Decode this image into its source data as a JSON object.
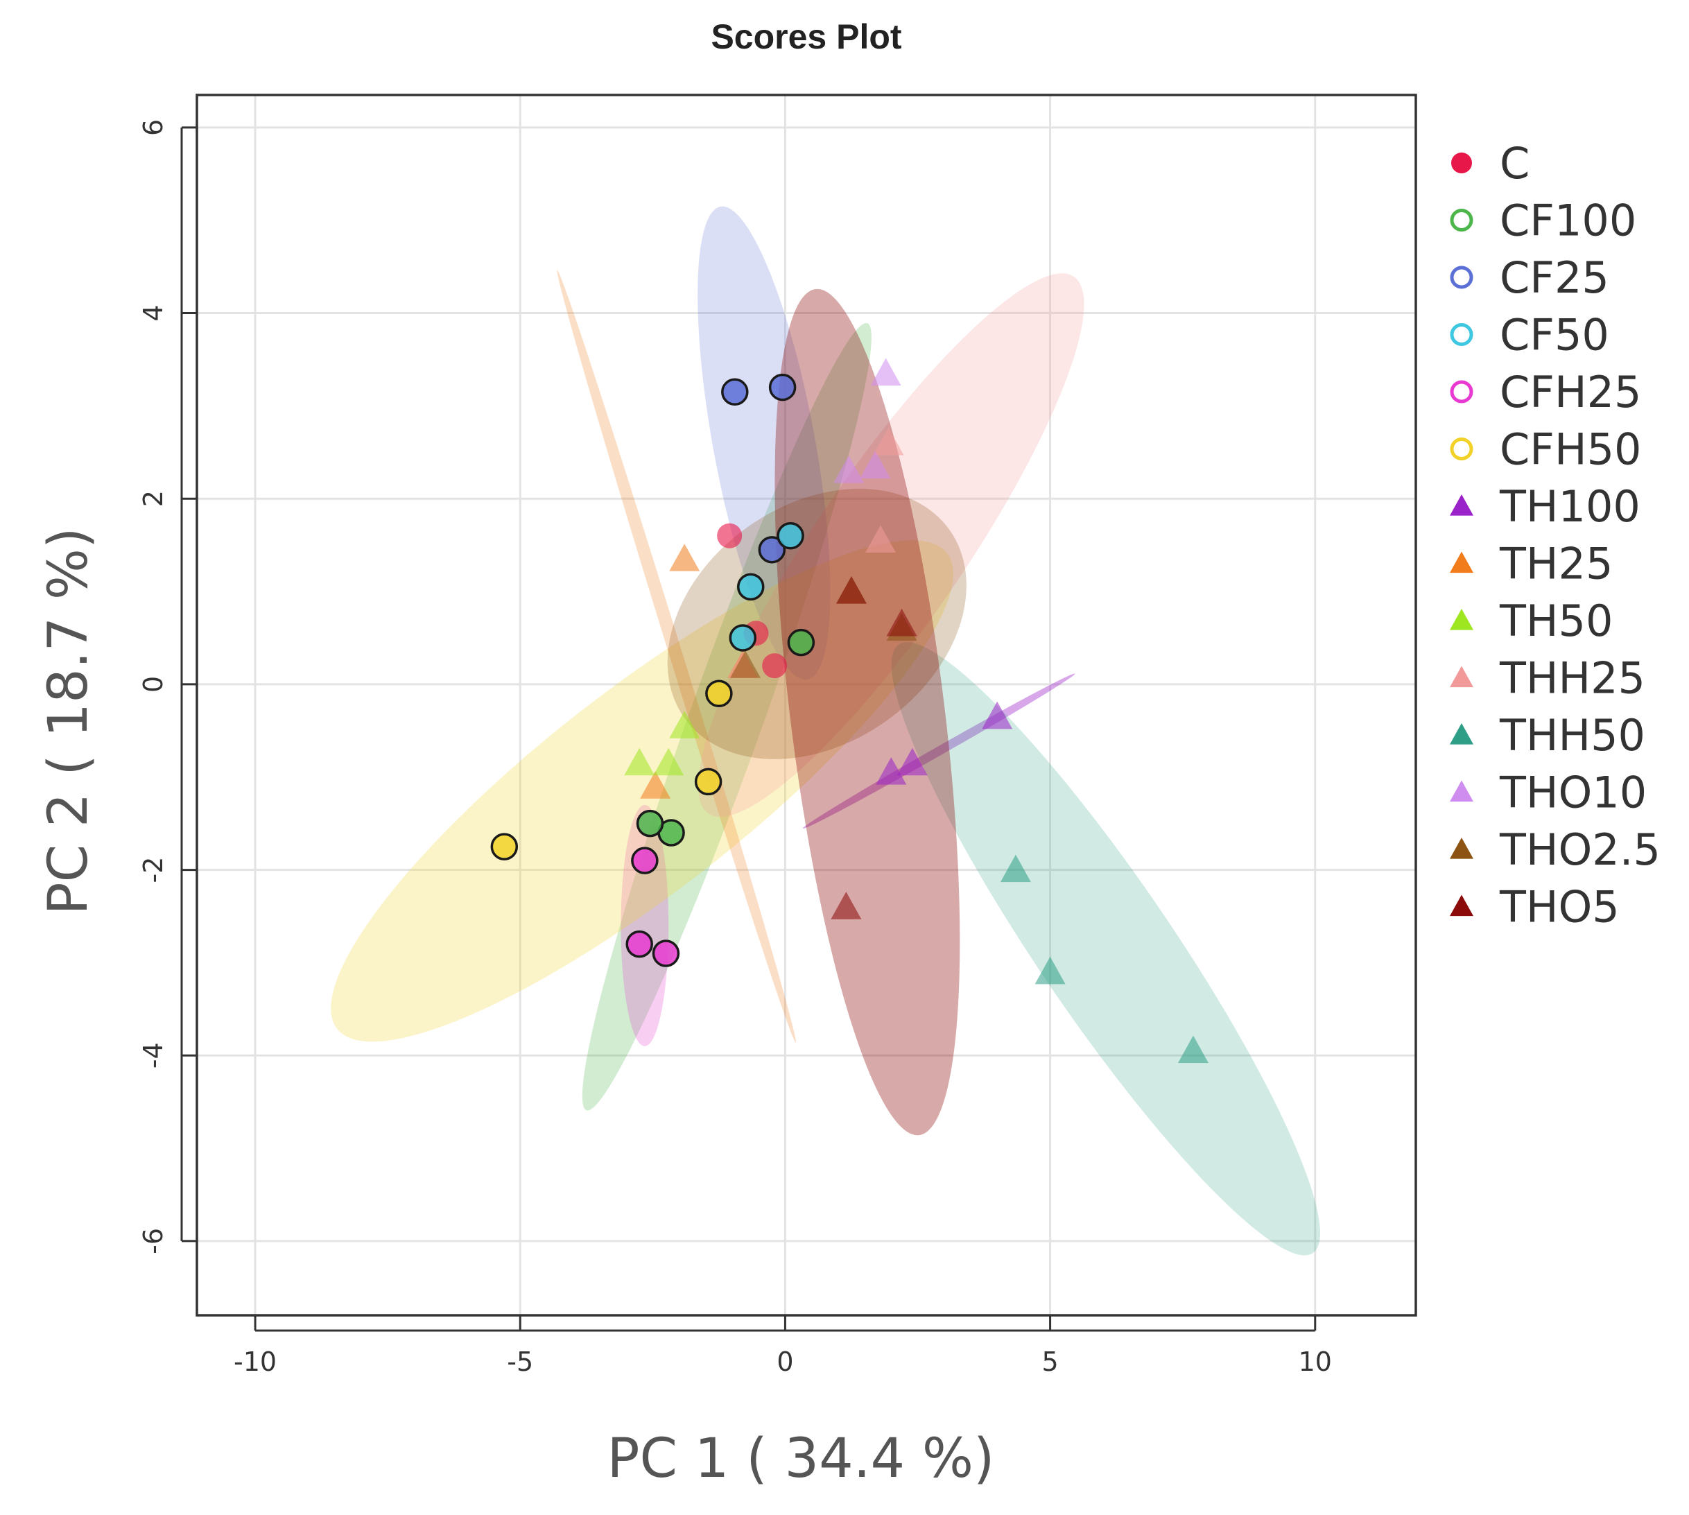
{
  "chart_data": {
    "type": "scatter",
    "title": "Scores Plot",
    "xlabel": "PC 1 ( 34.4 %)",
    "ylabel": "PC 2 ( 18.7 %)",
    "xlim": [
      -11.1,
      11.9
    ],
    "ylim": [
      -6.8,
      6.35
    ],
    "xticks": [
      -10,
      -5,
      0,
      5,
      10
    ],
    "xtick_labels": [
      "-10",
      "-5",
      "0",
      "5",
      "10"
    ],
    "yticks": [
      -6,
      -4,
      -2,
      0,
      2,
      4,
      6
    ],
    "ytick_labels": [
      "-6",
      "-4",
      "-2",
      "0",
      "2",
      "4",
      "6"
    ],
    "grid": true,
    "legend_position": "right",
    "series": [
      {
        "name": "C",
        "color": "#e8174a",
        "marker": "circle",
        "filled": true,
        "points": [
          [
            -1.05,
            1.6
          ],
          [
            -0.55,
            0.55
          ],
          [
            -0.2,
            0.2
          ]
        ],
        "ellipse": null
      },
      {
        "name": "CF100",
        "color": "#4cb54c",
        "marker": "circle",
        "filled": false,
        "points": [
          [
            0.3,
            0.45
          ],
          [
            -2.15,
            -1.6
          ],
          [
            -2.55,
            -1.5
          ]
        ],
        "ellipse": {
          "cx": -1.1,
          "cy": -0.35,
          "rx": 5.0,
          "ry": 0.55,
          "angle_deg": 58,
          "opacity": 0.25
        }
      },
      {
        "name": "CF25",
        "color": "#5b6fd6",
        "marker": "circle",
        "filled": false,
        "points": [
          [
            -0.95,
            3.15
          ],
          [
            -0.05,
            3.2
          ],
          [
            -0.25,
            1.45
          ]
        ],
        "ellipse": {
          "cx": -0.4,
          "cy": 2.6,
          "rx": 0.95,
          "ry": 2.6,
          "angle_deg": 6,
          "opacity": 0.22
        }
      },
      {
        "name": "CF50",
        "color": "#3fc6e0",
        "marker": "circle",
        "filled": false,
        "points": [
          [
            0.1,
            1.6
          ],
          [
            -0.65,
            1.05
          ],
          [
            -0.8,
            0.5
          ]
        ],
        "ellipse": null
      },
      {
        "name": "CFH25",
        "color": "#e83ad0",
        "marker": "circle",
        "filled": false,
        "points": [
          [
            -2.65,
            -1.9
          ],
          [
            -2.75,
            -2.8
          ],
          [
            -2.25,
            -2.9
          ]
        ],
        "ellipse": {
          "cx": -2.65,
          "cy": -2.6,
          "rx": 0.45,
          "ry": 1.3,
          "angle_deg": 0,
          "opacity": 0.25
        }
      },
      {
        "name": "CFH50",
        "color": "#f2d229",
        "marker": "circle",
        "filled": false,
        "points": [
          [
            -1.25,
            -0.1
          ],
          [
            -1.45,
            -1.05
          ],
          [
            -5.3,
            -1.75
          ]
        ],
        "ellipse": {
          "cx": -2.7,
          "cy": -1.15,
          "rx": 6.3,
          "ry": 1.15,
          "angle_deg": 24,
          "opacity": 0.25
        }
      },
      {
        "name": "TH100",
        "color": "#9a22c9",
        "marker": "triangle",
        "filled": true,
        "points": [
          [
            4.0,
            -0.35
          ],
          [
            2.4,
            -0.85
          ],
          [
            2.0,
            -0.95
          ]
        ],
        "ellipse": {
          "cx": 2.9,
          "cy": -0.72,
          "rx": 2.7,
          "ry": 0.05,
          "angle_deg": 18,
          "opacity": 0.4
        }
      },
      {
        "name": "TH25",
        "color": "#f07c1c",
        "marker": "triangle",
        "filled": true,
        "points": [
          [
            -1.9,
            1.35
          ],
          [
            -2.45,
            -1.1
          ],
          [
            -0.8,
            0.2
          ]
        ],
        "ellipse": {
          "cx": -2.05,
          "cy": 0.3,
          "rx": 0.12,
          "ry": 4.4,
          "angle_deg": 10,
          "opacity": 0.25
        }
      },
      {
        "name": "TH50",
        "color": "#9ee620",
        "marker": "triangle",
        "filled": true,
        "points": [
          [
            -1.9,
            -0.45
          ],
          [
            -2.75,
            -0.85
          ],
          [
            -2.2,
            -0.85
          ]
        ],
        "ellipse": null
      },
      {
        "name": "THH25",
        "color": "#f29a9a",
        "marker": "triangle",
        "filled": true,
        "points": [
          [
            1.95,
            2.6
          ],
          [
            1.8,
            1.55
          ],
          [
            -0.8,
            0.2
          ]
        ],
        "ellipse": {
          "cx": 2.0,
          "cy": 1.5,
          "rx": 4.5,
          "ry": 0.95,
          "angle_deg": 40,
          "opacity": 0.25
        }
      },
      {
        "name": "THH50",
        "color": "#2e9e86",
        "marker": "triangle",
        "filled": true,
        "points": [
          [
            4.35,
            -2.0
          ],
          [
            5.0,
            -3.1
          ],
          [
            7.7,
            -3.95
          ]
        ],
        "ellipse": {
          "cx": 6.05,
          "cy": -2.85,
          "rx": 5.1,
          "ry": 0.85,
          "angle_deg": -40,
          "opacity": 0.22
        }
      },
      {
        "name": "THO10",
        "color": "#d08df0",
        "marker": "triangle",
        "filled": true,
        "points": [
          [
            1.9,
            3.35
          ],
          [
            1.7,
            2.35
          ],
          [
            1.2,
            2.3
          ]
        ],
        "ellipse": null
      },
      {
        "name": "THO2.5",
        "color": "#8c5312",
        "marker": "triangle",
        "filled": true,
        "points": [
          [
            1.25,
            1.0
          ],
          [
            2.2,
            0.6
          ],
          [
            -0.75,
            0.2
          ]
        ],
        "ellipse": {
          "cx": 0.6,
          "cy": 0.65,
          "rx": 2.7,
          "ry": 1.35,
          "angle_deg": 22,
          "opacity": 0.25
        }
      },
      {
        "name": "THO5",
        "color": "#8b0a0a",
        "marker": "triangle",
        "filled": true,
        "points": [
          [
            1.25,
            1.0
          ],
          [
            2.2,
            0.65
          ],
          [
            1.15,
            -2.4
          ]
        ],
        "ellipse": {
          "cx": 1.55,
          "cy": -0.3,
          "rx": 1.45,
          "ry": 4.6,
          "angle_deg": 4,
          "opacity": 0.35
        }
      }
    ]
  }
}
